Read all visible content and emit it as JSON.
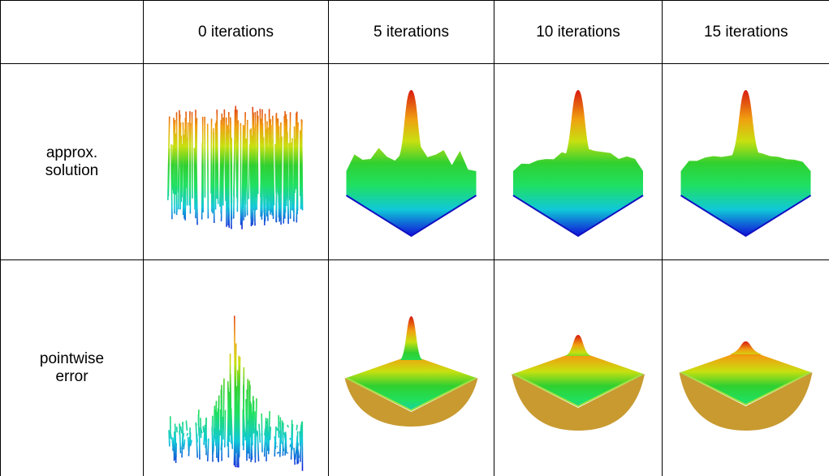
{
  "table": {
    "header": [
      "0 iterations",
      "5 iterations",
      "10 iterations",
      "15 iterations"
    ],
    "rows": [
      {
        "label": "approx. solution"
      },
      {
        "label": "pointwise error"
      }
    ]
  }
}
